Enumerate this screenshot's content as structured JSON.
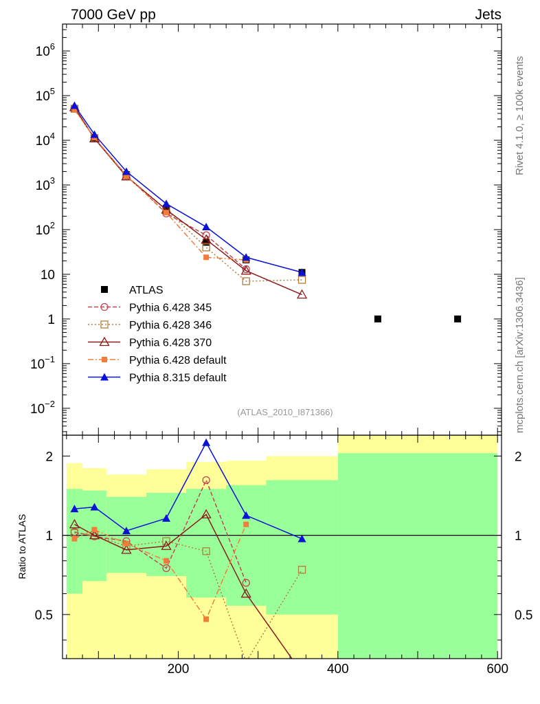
{
  "header": {
    "left": "7000 GeV pp",
    "right": "Jets"
  },
  "side_labels": {
    "rivet": "Rivet 4.1.0, ≥ 100k events",
    "mcplots": "mcplots.cern.ch [arXiv:1306.3436]"
  },
  "analysis_id": "(ATLAS_2010_I871366)",
  "chart_data": [
    {
      "type": "line",
      "panel": "main",
      "yscale": "log",
      "xlim": [
        55,
        605
      ],
      "ylim": [
        0.0025,
        4000000
      ],
      "yticks": [
        {
          "v": 0.01,
          "mant": "10",
          "exp": "−2"
        },
        {
          "v": 0.1,
          "mant": "10",
          "exp": "−1"
        },
        {
          "v": 1,
          "mant": "1",
          "exp": ""
        },
        {
          "v": 10,
          "mant": "10",
          "exp": ""
        },
        {
          "v": 100,
          "mant": "10",
          "exp": "2"
        },
        {
          "v": 1000,
          "mant": "10",
          "exp": "3"
        },
        {
          "v": 10000,
          "mant": "10",
          "exp": "4"
        },
        {
          "v": 100000,
          "mant": "10",
          "exp": "5"
        },
        {
          "v": 1000000,
          "mant": "10",
          "exp": "6"
        }
      ],
      "series": [
        {
          "name": "ATLAS",
          "color": "#000000",
          "marker": "square-filled",
          "dash": "none",
          "x": [
            70,
            95,
            135,
            185,
            235,
            285,
            355,
            450,
            550
          ],
          "y": [
            50000,
            11000,
            1700,
            300,
            52,
            21,
            11,
            1,
            1
          ]
        },
        {
          "name": "Pythia 6.428 345",
          "color": "#c0464e",
          "marker": "circle-open",
          "dash": "6,3",
          "x": [
            70,
            95,
            135,
            185,
            235,
            285
          ],
          "y": [
            52000,
            11000,
            1650,
            230,
            75,
            13
          ]
        },
        {
          "name": "Pythia 6.428 346",
          "color": "#b07e3a",
          "marker": "square-open",
          "dash": "2,3",
          "x": [
            70,
            95,
            135,
            185,
            235,
            285,
            355
          ],
          "y": [
            51000,
            11200,
            1600,
            280,
            40,
            7,
            7.5
          ]
        },
        {
          "name": "Pythia 6.428 370",
          "color": "#8b1a1a",
          "marker": "triangle-open",
          "dash": "none",
          "x": [
            70,
            95,
            135,
            185,
            235,
            285,
            355
          ],
          "y": [
            55000,
            11000,
            1550,
            280,
            60,
            12,
            3.5
          ]
        },
        {
          "name": "Pythia 6.428 default",
          "color": "#f07e3a",
          "marker": "square-filled-small",
          "dash": "8,3,2,3",
          "x": [
            70,
            95,
            135,
            185,
            235,
            285
          ],
          "y": [
            48000,
            11500,
            1600,
            240,
            24,
            21
          ]
        },
        {
          "name": "Pythia 8.315 default",
          "color": "#0a12d6",
          "marker": "triangle-filled",
          "dash": "none",
          "x": [
            70,
            95,
            135,
            185,
            235,
            285,
            355
          ],
          "y": [
            60000,
            13500,
            2000,
            380,
            115,
            24,
            11
          ]
        }
      ]
    },
    {
      "type": "line",
      "panel": "ratio",
      "ylabel": "Ratio to ATLAS",
      "yscale": "log",
      "xlim": [
        55,
        605
      ],
      "ylim": [
        0.34,
        2.4
      ],
      "yticks": [
        {
          "v": 0.5,
          "label": "0.5"
        },
        {
          "v": 1,
          "label": "1"
        },
        {
          "v": 2,
          "label": "2"
        }
      ],
      "xticks": [
        {
          "v": 200,
          "label": "200"
        },
        {
          "v": 400,
          "label": "400"
        },
        {
          "v": 600,
          "label": "600"
        }
      ],
      "uncertainty_bands": [
        {
          "x0": 60,
          "x1": 80,
          "inner": [
            0.6,
            1.5
          ],
          "outer": [
            0.3,
            1.88
          ]
        },
        {
          "x0": 80,
          "x1": 110,
          "inner": [
            0.67,
            1.48
          ],
          "outer": [
            0.3,
            1.8
          ]
        },
        {
          "x0": 110,
          "x1": 160,
          "inner": [
            0.72,
            1.4
          ],
          "outer": [
            0.3,
            1.7
          ]
        },
        {
          "x0": 160,
          "x1": 210,
          "inner": [
            0.7,
            1.45
          ],
          "outer": [
            0.3,
            1.78
          ]
        },
        {
          "x0": 210,
          "x1": 260,
          "inner": [
            0.58,
            1.5
          ],
          "outer": [
            0.3,
            1.9
          ]
        },
        {
          "x0": 260,
          "x1": 310,
          "inner": [
            0.54,
            1.55
          ],
          "outer": [
            0.3,
            1.92
          ]
        },
        {
          "x0": 310,
          "x1": 400,
          "inner": [
            0.5,
            1.62
          ],
          "outer": [
            0.3,
            2.0
          ]
        },
        {
          "x0": 400,
          "x1": 600,
          "inner": [
            0.3,
            2.05
          ],
          "outer": [
            0.3,
            2.5
          ]
        }
      ],
      "series": [
        {
          "name": "Pythia 6.428 345",
          "color": "#c0464e",
          "marker": "circle-open",
          "dash": "6,3",
          "x": [
            70,
            95,
            135,
            185,
            235,
            285
          ],
          "y": [
            1.03,
            0.99,
            0.95,
            0.75,
            1.62,
            0.66
          ]
        },
        {
          "name": "Pythia 6.428 346",
          "color": "#b07e3a",
          "marker": "square-open",
          "dash": "2,3",
          "x": [
            70,
            95,
            135,
            185,
            235,
            285,
            355
          ],
          "y": [
            1.02,
            1.0,
            0.91,
            0.95,
            0.87,
            0.33,
            0.74
          ]
        },
        {
          "name": "Pythia 6.428 370",
          "color": "#8b1a1a",
          "marker": "triangle-open",
          "dash": "none",
          "x": [
            70,
            95,
            135,
            185,
            235,
            285,
            355
          ],
          "y": [
            1.1,
            1.0,
            0.88,
            0.91,
            1.2,
            0.6,
            0.3
          ]
        },
        {
          "name": "Pythia 6.428 default",
          "color": "#f07e3a",
          "marker": "square-filled-small",
          "dash": "8,3,2,3",
          "x": [
            70,
            95,
            135,
            185,
            235,
            285
          ],
          "y": [
            0.97,
            1.05,
            0.93,
            0.8,
            0.48,
            1.1
          ]
        },
        {
          "name": "Pythia 8.315 default",
          "color": "#0a12d6",
          "marker": "triangle-filled",
          "dash": "none",
          "x": [
            70,
            95,
            135,
            185,
            235,
            285,
            355
          ],
          "y": [
            1.26,
            1.28,
            1.04,
            1.16,
            2.25,
            1.19,
            0.97
          ]
        }
      ]
    }
  ]
}
